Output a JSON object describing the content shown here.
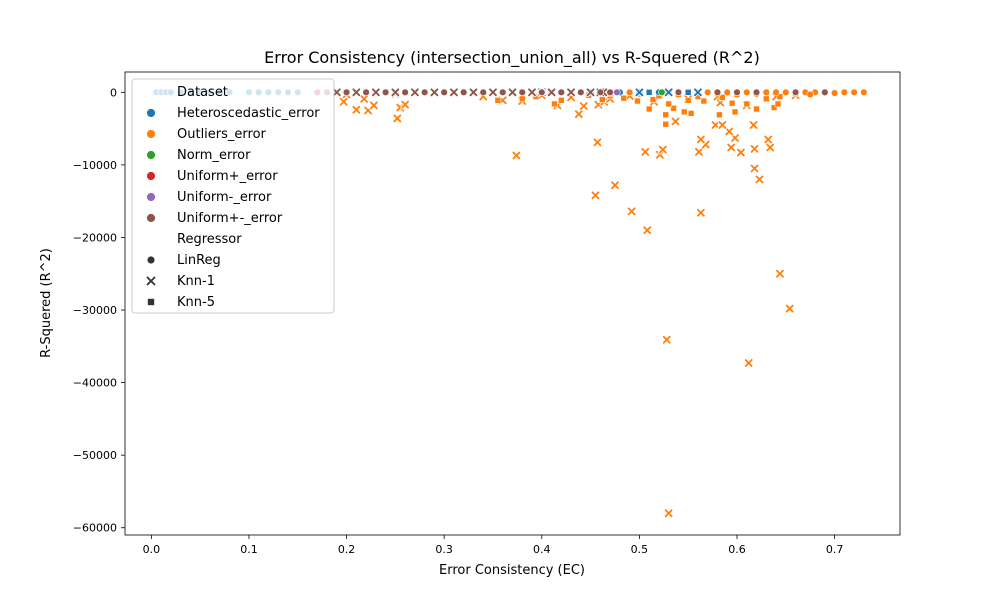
{
  "chart_data": {
    "type": "scatter",
    "title": "Error Consistency (intersection_union_all) vs R-Squered (R^2)",
    "xlabel": "Error Consistency (EC)",
    "ylabel": "R-Squered (R^2)",
    "xlim": [
      -0.027,
      0.767
    ],
    "ylim": [
      -61000,
      2800
    ],
    "x_ticks": [
      0.0,
      0.1,
      0.2,
      0.3,
      0.4,
      0.5,
      0.6,
      0.7
    ],
    "x_tick_labels": [
      "0.0",
      "0.1",
      "0.2",
      "0.3",
      "0.4",
      "0.5",
      "0.6",
      "0.7"
    ],
    "y_ticks": [
      0,
      -10000,
      -20000,
      -30000,
      -40000,
      -50000,
      -60000
    ],
    "y_tick_labels": [
      "0",
      "−10000",
      "−20000",
      "−30000",
      "−40000",
      "−50000",
      "−60000"
    ],
    "grid": false,
    "legend": {
      "placement": "upper left",
      "hue_title": "Dataset",
      "style_title": "Regressor",
      "datasets": [
        {
          "name": "Heteroscedastic_error",
          "color": "#1f77b4"
        },
        {
          "name": "Outliers_error",
          "color": "#ff7f0e"
        },
        {
          "name": "Norm_error",
          "color": "#2ca02c"
        },
        {
          "name": "Uniform+_error",
          "color": "#d62728"
        },
        {
          "name": "Uniform-_error",
          "color": "#9467bd"
        },
        {
          "name": "Uniform+-_error",
          "color": "#8c564b"
        }
      ],
      "regressors": [
        {
          "name": "LinReg",
          "marker": "circle"
        },
        {
          "name": "Knn-1",
          "marker": "x"
        },
        {
          "name": "Knn-5",
          "marker": "square"
        }
      ]
    },
    "series": [
      {
        "dataset": "Outliers_error",
        "regressor": "Knn-1",
        "color": "#ff7f0e",
        "marker": "x",
        "points": [
          [
            0.53,
            -58000
          ],
          [
            0.612,
            -37300
          ],
          [
            0.528,
            -34100
          ],
          [
            0.654,
            -29800
          ],
          [
            0.644,
            -25000
          ],
          [
            0.508,
            -19000
          ],
          [
            0.563,
            -16600
          ],
          [
            0.492,
            -16400
          ],
          [
            0.455,
            -14200
          ],
          [
            0.475,
            -12800
          ],
          [
            0.623,
            -12000
          ],
          [
            0.618,
            -10500
          ],
          [
            0.374,
            -8700
          ],
          [
            0.521,
            -8600
          ],
          [
            0.506,
            -8200
          ],
          [
            0.561,
            -8200
          ],
          [
            0.604,
            -8300
          ],
          [
            0.524,
            -7900
          ],
          [
            0.634,
            -7600
          ],
          [
            0.594,
            -7600
          ],
          [
            0.618,
            -7800
          ],
          [
            0.568,
            -7200
          ],
          [
            0.457,
            -6900
          ],
          [
            0.563,
            -6500
          ],
          [
            0.632,
            -6500
          ],
          [
            0.598,
            -6300
          ],
          [
            0.592,
            -5400
          ],
          [
            0.578,
            -4500
          ],
          [
            0.585,
            -4500
          ],
          [
            0.617,
            -4500
          ],
          [
            0.537,
            -4000
          ],
          [
            0.252,
            -3600
          ],
          [
            0.438,
            -3000
          ],
          [
            0.21,
            -2400
          ],
          [
            0.222,
            -2500
          ],
          [
            0.255,
            -2100
          ],
          [
            0.228,
            -1800
          ],
          [
            0.26,
            -1700
          ],
          [
            0.416,
            -1800
          ],
          [
            0.443,
            -1900
          ],
          [
            0.458,
            -1700
          ],
          [
            0.464,
            -1300
          ],
          [
            0.515,
            -1300
          ],
          [
            0.36,
            -1100
          ],
          [
            0.38,
            -1200
          ],
          [
            0.197,
            -1300
          ],
          [
            0.218,
            -900
          ],
          [
            0.34,
            -600
          ],
          [
            0.43,
            -700
          ],
          [
            0.47,
            -900
          ],
          [
            0.55,
            -900
          ],
          [
            0.583,
            -1400
          ],
          [
            0.61,
            -1800
          ],
          [
            0.49,
            -500
          ],
          [
            0.58,
            -600
          ],
          [
            0.66,
            -400
          ],
          [
            0.2,
            -300
          ],
          [
            0.25,
            -200
          ],
          [
            0.4,
            -400
          ],
          [
            0.52,
            -300
          ],
          [
            0.64,
            -600
          ]
        ]
      },
      {
        "dataset": "Outliers_error",
        "regressor": "Knn-5",
        "color": "#ff7f0e",
        "marker": "square",
        "points": [
          [
            0.527,
            -4400
          ],
          [
            0.527,
            -3100
          ],
          [
            0.546,
            -2700
          ],
          [
            0.553,
            -2900
          ],
          [
            0.51,
            -2300
          ],
          [
            0.535,
            -2200
          ],
          [
            0.638,
            -2100
          ],
          [
            0.62,
            -2300
          ],
          [
            0.598,
            -2700
          ],
          [
            0.582,
            -3100
          ],
          [
            0.642,
            -1600
          ],
          [
            0.61,
            -1600
          ],
          [
            0.595,
            -1500
          ],
          [
            0.566,
            -1200
          ],
          [
            0.55,
            -1100
          ],
          [
            0.53,
            -1600
          ],
          [
            0.514,
            -1000
          ],
          [
            0.498,
            -1200
          ],
          [
            0.484,
            -800
          ],
          [
            0.462,
            -1000
          ],
          [
            0.413,
            -1600
          ],
          [
            0.42,
            -1100
          ],
          [
            0.355,
            -1100
          ],
          [
            0.38,
            -900
          ],
          [
            0.394,
            -600
          ],
          [
            0.448,
            -400
          ],
          [
            0.47,
            -500
          ],
          [
            0.56,
            -600
          ],
          [
            0.585,
            -700
          ],
          [
            0.63,
            -900
          ],
          [
            0.644,
            -600
          ],
          [
            0.52,
            -500
          ],
          [
            0.54,
            -300
          ],
          [
            0.47,
            -200
          ],
          [
            0.6,
            -300
          ],
          [
            0.66,
            -200
          ]
        ]
      },
      {
        "dataset": "Outliers_error",
        "regressor": "LinReg",
        "color": "#ff7f0e",
        "marker": "circle",
        "points": [
          [
            0.45,
            0
          ],
          [
            0.47,
            0
          ],
          [
            0.49,
            0
          ],
          [
            0.5,
            -100
          ],
          [
            0.51,
            0
          ],
          [
            0.53,
            0
          ],
          [
            0.55,
            0
          ],
          [
            0.57,
            0
          ],
          [
            0.58,
            0
          ],
          [
            0.59,
            0
          ],
          [
            0.6,
            0
          ],
          [
            0.61,
            0
          ],
          [
            0.62,
            0
          ],
          [
            0.63,
            0
          ],
          [
            0.64,
            0
          ],
          [
            0.65,
            0
          ],
          [
            0.66,
            0
          ],
          [
            0.67,
            0
          ],
          [
            0.68,
            0
          ],
          [
            0.69,
            0
          ],
          [
            0.7,
            0
          ],
          [
            0.71,
            0
          ],
          [
            0.72,
            0
          ],
          [
            0.73,
            0
          ],
          [
            0.675,
            -300
          ],
          [
            0.7,
            -100
          ],
          [
            0.62,
            -200
          ],
          [
            0.58,
            -200
          ],
          [
            0.5,
            -200
          ]
        ]
      },
      {
        "dataset": "Heteroscedastic_error",
        "regressor": "LinReg",
        "color": "#1f77b4",
        "marker": "circle",
        "points": [
          [
            0.005,
            0
          ],
          [
            0.01,
            0
          ],
          [
            0.015,
            0
          ],
          [
            0.02,
            0
          ],
          [
            0.03,
            0
          ],
          [
            0.04,
            0
          ],
          [
            0.05,
            0
          ],
          [
            0.06,
            0
          ],
          [
            0.07,
            0
          ],
          [
            0.08,
            0
          ],
          [
            0.1,
            0
          ],
          [
            0.11,
            0
          ],
          [
            0.12,
            0
          ],
          [
            0.13,
            0
          ],
          [
            0.14,
            0
          ],
          [
            0.15,
            0
          ],
          [
            0.42,
            0
          ],
          [
            0.45,
            0
          ],
          [
            0.48,
            0
          ],
          [
            0.5,
            0
          ],
          [
            0.52,
            0
          ],
          [
            0.54,
            0
          ]
        ]
      },
      {
        "dataset": "Heteroscedastic_error",
        "regressor": "Knn-1",
        "color": "#1f77b4",
        "marker": "x",
        "points": [
          [
            0.4,
            0
          ],
          [
            0.43,
            0
          ],
          [
            0.46,
            0
          ],
          [
            0.5,
            0
          ],
          [
            0.53,
            0
          ],
          [
            0.56,
            0
          ]
        ]
      },
      {
        "dataset": "Heteroscedastic_error",
        "regressor": "Knn-5",
        "color": "#1f77b4",
        "marker": "square",
        "points": [
          [
            0.41,
            0
          ],
          [
            0.44,
            0
          ],
          [
            0.47,
            0
          ],
          [
            0.51,
            0
          ],
          [
            0.55,
            0
          ]
        ]
      },
      {
        "dataset": "Norm_error",
        "regressor": "LinReg",
        "color": "#2ca02c",
        "marker": "circle",
        "points": [
          [
            0.45,
            0
          ],
          [
            0.523,
            0
          ]
        ]
      },
      {
        "dataset": "Uniform-_error",
        "regressor": "LinReg",
        "color": "#9467bd",
        "marker": "circle",
        "points": [
          [
            0.477,
            0
          ]
        ]
      },
      {
        "dataset": "Uniform+_error",
        "regressor": "LinReg",
        "color": "#d62728",
        "marker": "circle",
        "points": [
          [
            0.17,
            0
          ]
        ]
      },
      {
        "dataset": "Uniform+-_error",
        "regressor": "Knn-1",
        "color": "#8c564b",
        "marker": "x",
        "points": [
          [
            0.19,
            0
          ],
          [
            0.21,
            0
          ],
          [
            0.23,
            0
          ],
          [
            0.25,
            0
          ],
          [
            0.27,
            0
          ],
          [
            0.29,
            0
          ],
          [
            0.31,
            0
          ],
          [
            0.33,
            0
          ],
          [
            0.35,
            0
          ],
          [
            0.37,
            0
          ],
          [
            0.39,
            0
          ],
          [
            0.41,
            0
          ],
          [
            0.43,
            0
          ],
          [
            0.45,
            0
          ],
          [
            0.463,
            0
          ]
        ]
      },
      {
        "dataset": "Uniform+-_error",
        "regressor": "Knn-5",
        "color": "#8c564b",
        "marker": "square",
        "points": [
          [
            0.2,
            0
          ],
          [
            0.22,
            0
          ],
          [
            0.24,
            0
          ],
          [
            0.26,
            0
          ],
          [
            0.28,
            0
          ],
          [
            0.3,
            0
          ],
          [
            0.32,
            0
          ],
          [
            0.34,
            0
          ],
          [
            0.36,
            0
          ],
          [
            0.38,
            0
          ],
          [
            0.4,
            0
          ],
          [
            0.42,
            0
          ],
          [
            0.44,
            0
          ]
        ]
      },
      {
        "dataset": "Uniform+-_error",
        "regressor": "LinReg",
        "color": "#8c564b",
        "marker": "circle",
        "points": [
          [
            0.18,
            0
          ],
          [
            0.2,
            0
          ],
          [
            0.22,
            0
          ],
          [
            0.24,
            0
          ],
          [
            0.26,
            0
          ],
          [
            0.28,
            0
          ],
          [
            0.3,
            0
          ],
          [
            0.32,
            0
          ],
          [
            0.34,
            0
          ],
          [
            0.36,
            0
          ],
          [
            0.38,
            0
          ],
          [
            0.4,
            0
          ],
          [
            0.42,
            0
          ],
          [
            0.44,
            0
          ],
          [
            0.46,
            0
          ],
          [
            0.47,
            0
          ],
          [
            0.54,
            0
          ],
          [
            0.58,
            0
          ],
          [
            0.6,
            0
          ],
          [
            0.62,
            0
          ],
          [
            0.66,
            0
          ],
          [
            0.69,
            0
          ]
        ]
      }
    ]
  }
}
